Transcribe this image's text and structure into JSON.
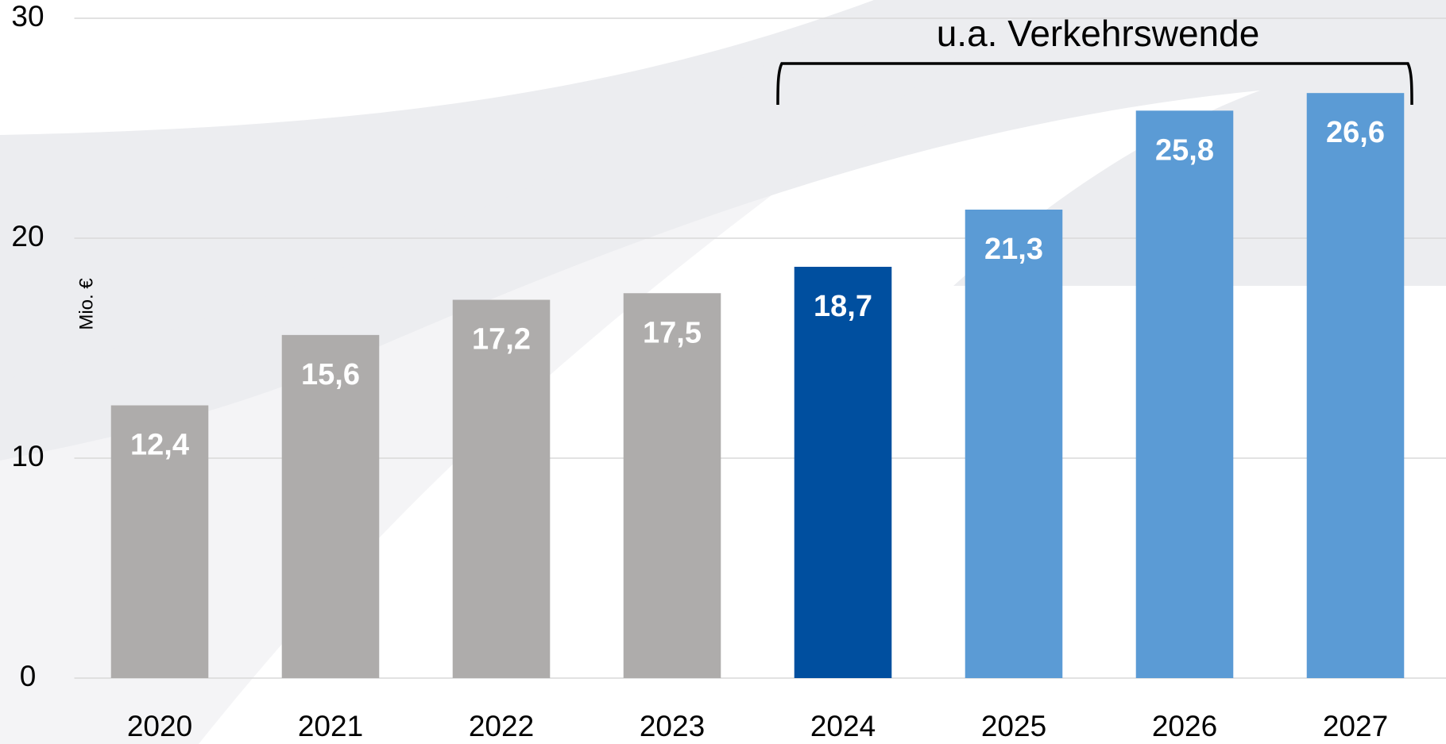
{
  "chart_data": {
    "type": "bar",
    "annotation": "u.a. Verkehrswende",
    "y_label": "Mio. €",
    "categories": [
      "2020",
      "2021",
      "2022",
      "2023",
      "2024",
      "2025",
      "2026",
      "2027"
    ],
    "values": [
      12.4,
      15.6,
      17.2,
      17.5,
      18.7,
      21.3,
      25.8,
      26.6
    ],
    "value_labels": [
      "12,4",
      "15,6",
      "17,2",
      "17,5",
      "18,7",
      "21,3",
      "25,8",
      "26,6"
    ],
    "colors": [
      "#aeacab",
      "#aeacab",
      "#aeacab",
      "#aeacab",
      "#004f9f",
      "#5b9bd5",
      "#5b9bd5",
      "#5b9bd5"
    ],
    "ylim": [
      0,
      30
    ],
    "yticks": [
      0,
      10,
      20,
      30
    ],
    "grid": true
  }
}
